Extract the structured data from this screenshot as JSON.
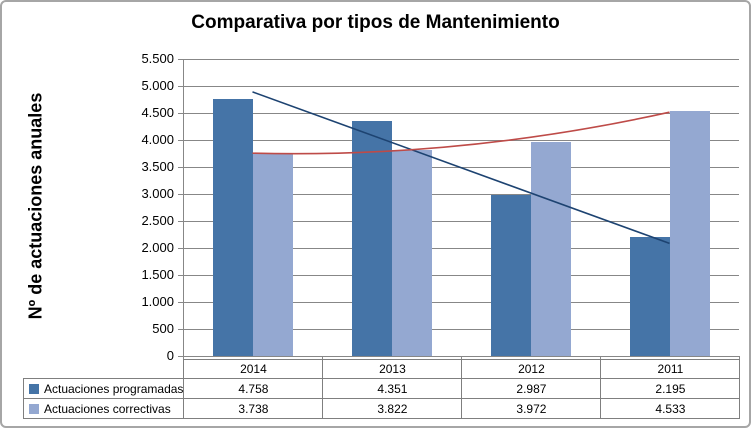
{
  "title": "Comparativa por tipos de Mantenimiento",
  "y_axis": {
    "title": "Nº de actuaciones anuales",
    "tick_labels": [
      "5.500",
      "5.000",
      "4.500",
      "4.000",
      "3.500",
      "3.000",
      "2.500",
      "2.000",
      "1.500",
      "1.000",
      "500",
      "0"
    ],
    "max": 5500,
    "tick_step": 500
  },
  "chart_data": {
    "type": "bar",
    "title": "Comparativa por tipos de Mantenimiento",
    "xlabel": "",
    "ylabel": "Nº de actuaciones anuales",
    "categories": [
      "2014",
      "2013",
      "2012",
      "2011"
    ],
    "series": [
      {
        "name": "Actuaciones programadas",
        "color": "#4574A7",
        "values": [
          4758,
          4351,
          2987,
          2195
        ]
      },
      {
        "name": "Actuaciones correctivas",
        "color": "#94A8D1",
        "values": [
          3738,
          3822,
          3972,
          4533
        ]
      }
    ],
    "trendlines": [
      {
        "series": "Actuaciones programadas",
        "shape": "linear",
        "color": "#1D4371",
        "values": [
          4890,
          3955,
          3020,
          2085
        ]
      },
      {
        "series": "Actuaciones correctivas",
        "shape": "quadratic",
        "color": "#BE4B48",
        "values": [
          3755,
          3770,
          4025,
          4515
        ]
      }
    ],
    "ylim": [
      0,
      5500
    ],
    "grid": true,
    "gridline_color": "#878787",
    "legend_position": "table-left"
  },
  "table": {
    "years": [
      "2014",
      "2013",
      "2012",
      "2011"
    ],
    "rows": [
      {
        "label": "Actuaciones programadas",
        "key_color": "#4574A7",
        "cells": [
          "4.758",
          "4.351",
          "2.987",
          "2.195"
        ]
      },
      {
        "label": "Actuaciones correctivas",
        "key_color": "#94A8D1",
        "cells": [
          "3.738",
          "3.822",
          "3.972",
          "4.533"
        ]
      }
    ]
  }
}
